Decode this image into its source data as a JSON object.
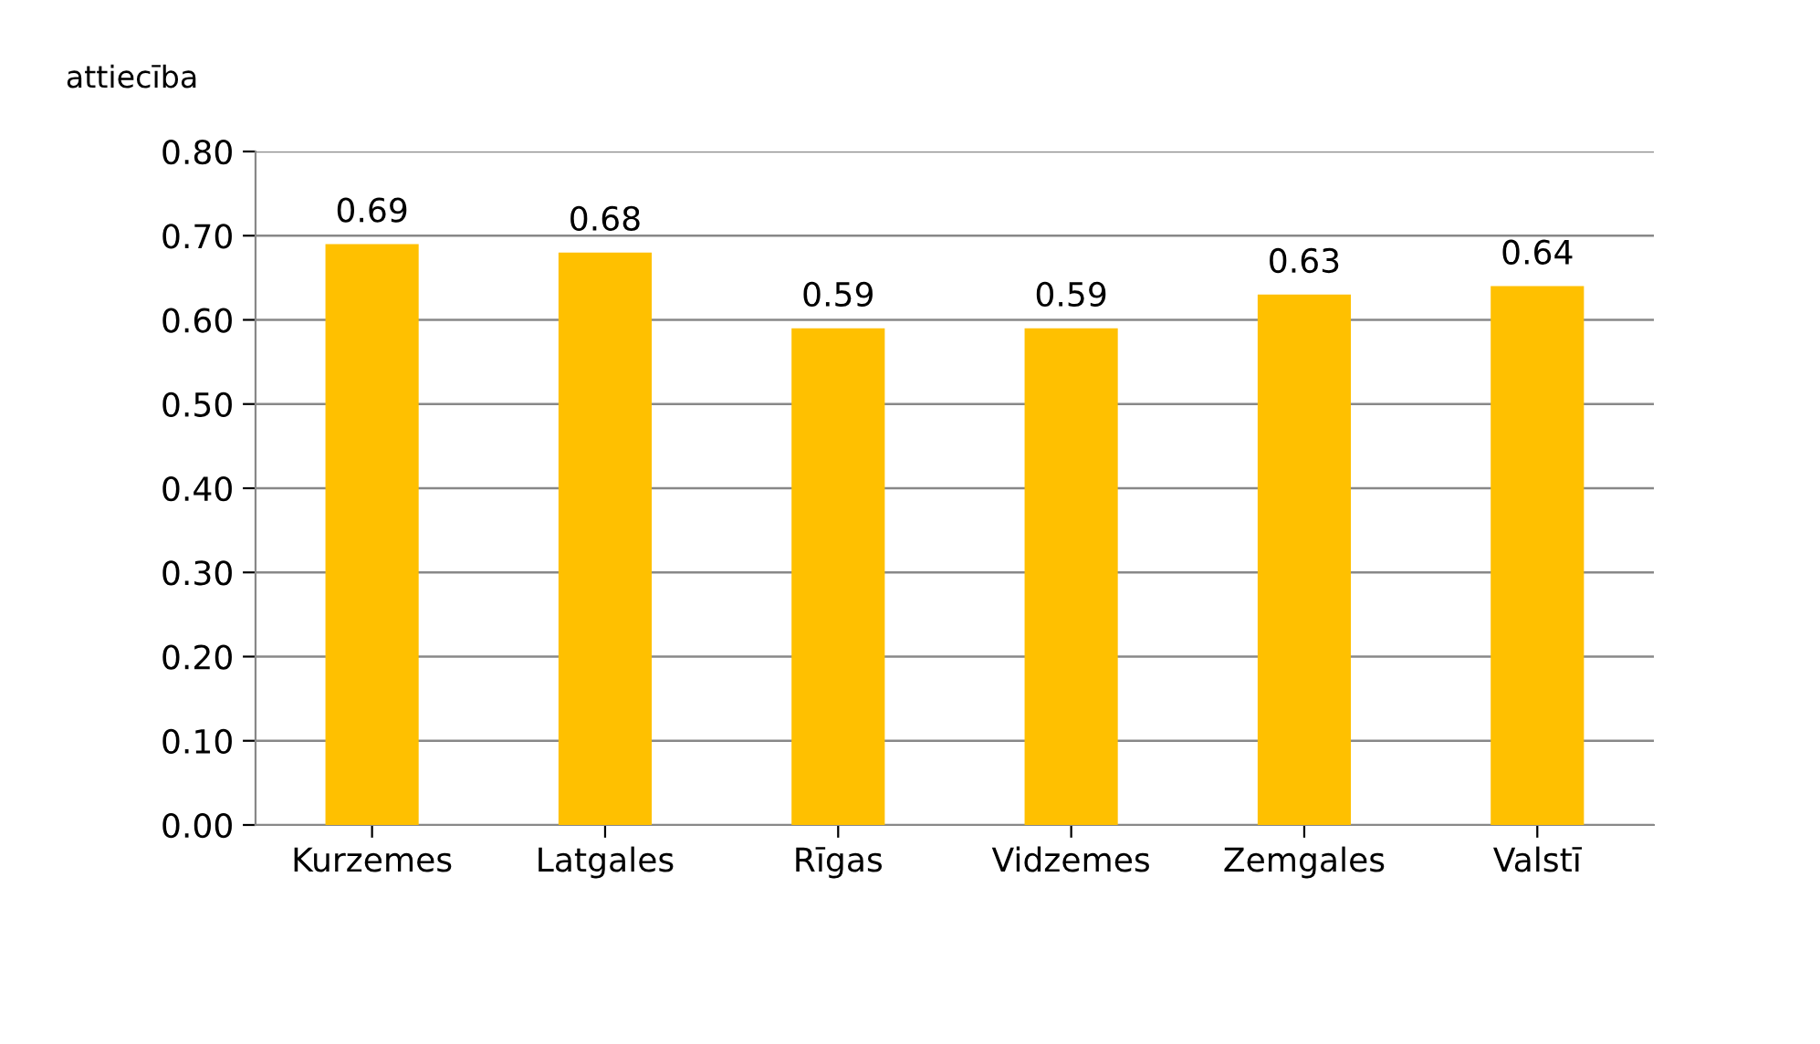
{
  "chart_data": {
    "type": "bar",
    "ylabel": "attiecība",
    "categories": [
      "Kurzemes",
      "Latgales",
      "Rīgas",
      "Vidzemes",
      "Zemgales",
      "Valstī"
    ],
    "values": [
      0.69,
      0.68,
      0.59,
      0.59,
      0.63,
      0.64
    ],
    "color": "#ffc000",
    "data_labels": true,
    "grid": "y",
    "legend": false,
    "ylim": [
      0,
      0.8
    ],
    "yticks": [
      {
        "value": 0,
        "label": "0.00"
      },
      {
        "value": 0.1,
        "label": "0.10"
      },
      {
        "value": 0.2,
        "label": "0.20"
      },
      {
        "value": 0.3,
        "label": "0.30"
      },
      {
        "value": 0.4,
        "label": "0.40"
      },
      {
        "value": 0.5,
        "label": "0.50"
      },
      {
        "value": 0.6,
        "label": "0.60"
      },
      {
        "value": 0.7,
        "label": "0.70"
      },
      {
        "value": 0.8,
        "label": "0.80"
      }
    ]
  }
}
